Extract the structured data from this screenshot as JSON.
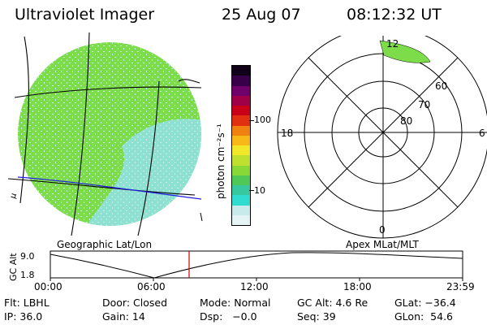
{
  "header": {
    "instrument": "Ultraviolet Imager",
    "date": "25 Aug 07",
    "time": "08:12:32 UT"
  },
  "colorbar": {
    "unit": "photon cm⁻²s⁻¹",
    "tick_100": "100",
    "tick_10": "10",
    "colors": [
      "#e4f4f4",
      "#c8eaea",
      "#30dcd0",
      "#38c8a0",
      "#50c858",
      "#88d838",
      "#c0e030",
      "#f0e828",
      "#f8b818",
      "#f08010",
      "#e03010",
      "#c80018",
      "#a00048",
      "#70006a",
      "#380048",
      "#100018"
    ]
  },
  "globe": {
    "side_label": "μ",
    "colors": {
      "green": "#7cdc4a",
      "cyan": "#8ee0d0",
      "speckle": "#c8ecec",
      "grid": "#000000",
      "terminator": "#2020e0"
    }
  },
  "polar": {
    "mlt_top": "12",
    "mlt_left": "18",
    "mlt_right": "6",
    "mlt_bottom": "0",
    "lat_60": "60",
    "lat_70": "70",
    "lat_80": "80"
  },
  "plot": {
    "left_label": "Geographic Lat/Lon",
    "right_label": "Apex MLat/MLT",
    "y_axis_label": "GC Alt",
    "y_top": "9.0",
    "y_bottom": "1.8",
    "x_ticks": [
      "00:00",
      "06:00",
      "12:00",
      "18:00",
      "23:59"
    ],
    "marker_color": "#d00000"
  },
  "status": {
    "row1": {
      "flt": "Flt: LBHL",
      "door": "Door: Closed",
      "mode": "Mode: Normal",
      "gcalt": "GC Alt: 4.6 Re",
      "glat": "GLat: −36.4"
    },
    "row2": {
      "ip": "IP: 36.0",
      "gain": "Gain: 14",
      "dsp": "Dsp:   −0.0",
      "seq": "Seq: 39",
      "glon": "GLon:  54.6"
    }
  }
}
